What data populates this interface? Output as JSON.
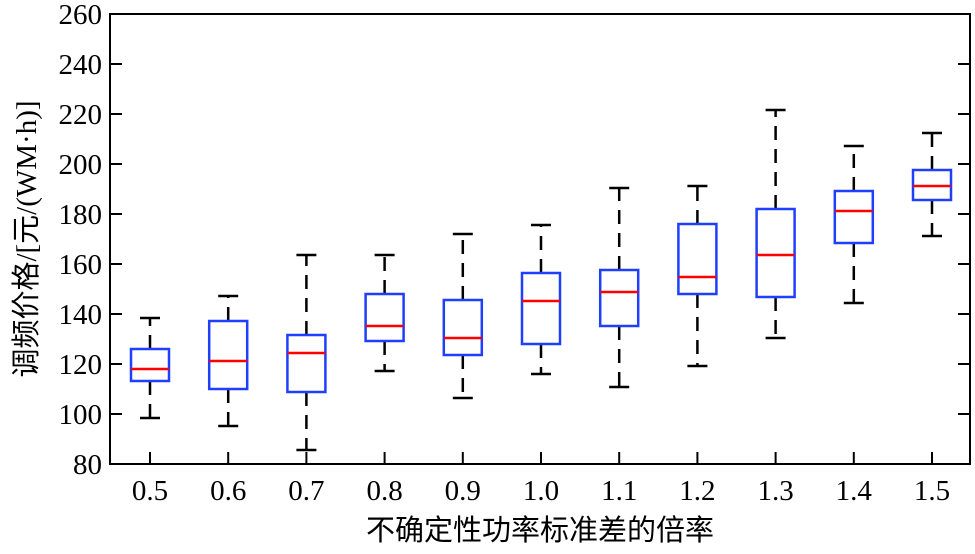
{
  "chart_data": {
    "type": "box",
    "xlabel": "不确定性功率标准差的倍率",
    "ylabel": "调频价格/[元/(WM·h)]",
    "ylim": [
      80,
      260
    ],
    "yticks": [
      "80",
      "100",
      "120",
      "140",
      "160",
      "180",
      "200",
      "220",
      "240",
      "260"
    ],
    "categories": [
      "0.5",
      "0.6",
      "0.7",
      "0.8",
      "0.9",
      "1.0",
      "1.1",
      "1.2",
      "1.3",
      "1.4",
      "1.5"
    ],
    "boxes": [
      {
        "whisker_low": 98.4,
        "q1": 113.2,
        "median": 118,
        "q3": 126,
        "whisker_high": 138.4
      },
      {
        "whisker_low": 95.2,
        "q1": 110,
        "median": 121.2,
        "q3": 137.2,
        "whisker_high": 147.2
      },
      {
        "whisker_low": 85.6,
        "q1": 108.8,
        "median": 124.4,
        "q3": 131.6,
        "whisker_high": 163.6
      },
      {
        "whisker_low": 117.2,
        "q1": 129.2,
        "median": 135.2,
        "q3": 148,
        "whisker_high": 163.6
      },
      {
        "whisker_low": 106.4,
        "q1": 123.6,
        "median": 130.4,
        "q3": 145.6,
        "whisker_high": 172
      },
      {
        "whisker_low": 116,
        "q1": 128,
        "median": 145.2,
        "q3": 156.4,
        "whisker_high": 175.6
      },
      {
        "whisker_low": 110.8,
        "q1": 135.2,
        "median": 148.8,
        "q3": 157.6,
        "whisker_high": 190.4
      },
      {
        "whisker_low": 119.2,
        "q1": 148,
        "median": 154.8,
        "q3": 176,
        "whisker_high": 191.2
      },
      {
        "whisker_low": 130.4,
        "q1": 146.8,
        "median": 163.6,
        "q3": 182,
        "whisker_high": 221.6
      },
      {
        "whisker_low": 144.4,
        "q1": 168.4,
        "median": 181.2,
        "q3": 189.2,
        "whisker_high": 207.2
      },
      {
        "whisker_low": 171.2,
        "q1": 185.6,
        "median": 191.2,
        "q3": 197.6,
        "whisker_high": 212.4
      }
    ],
    "grid": false,
    "colors": {
      "box": "#1f3fff",
      "median": "#ff0000",
      "whisker": "#000000"
    }
  }
}
